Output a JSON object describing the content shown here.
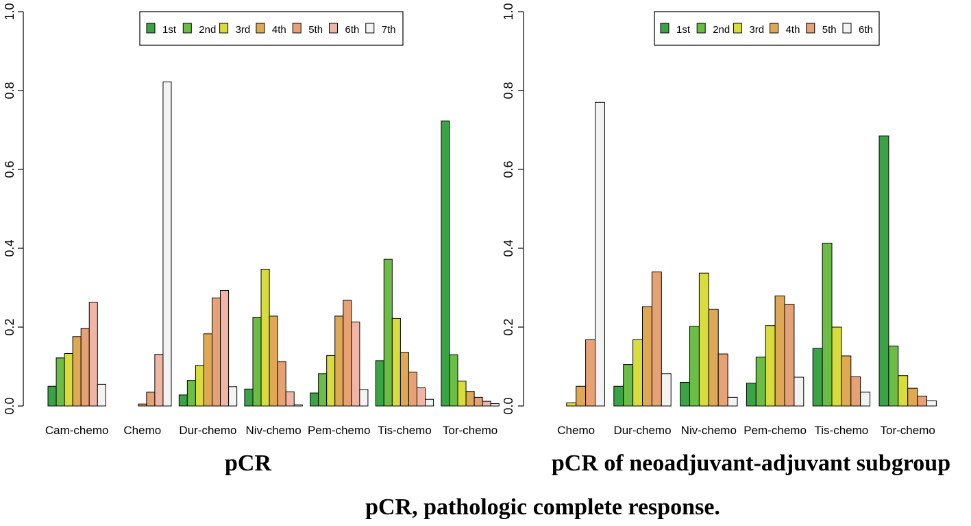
{
  "figure_caption": "pCR, pathologic complete response.",
  "chart_data": [
    {
      "type": "bar",
      "title": "pCR",
      "xlabel": "",
      "ylabel": "",
      "ylim": [
        0,
        1
      ],
      "yticks": [
        "0.0",
        "0.2",
        "0.4",
        "0.6",
        "0.8",
        "1.0"
      ],
      "grid": false,
      "legend_position": "top-center",
      "categories": [
        "Cam-chemo",
        "Chemo",
        "Dur-chemo",
        "Niv-chemo",
        "Pem-chemo",
        "Tis-chemo",
        "Tor-chemo"
      ],
      "series": [
        {
          "name": "1st",
          "color": "#3aa345",
          "values": [
            0.05,
            0.0,
            0.028,
            0.043,
            0.033,
            0.115,
            0.723
          ]
        },
        {
          "name": "2nd",
          "color": "#6cbd45",
          "values": [
            0.122,
            0.0,
            0.065,
            0.225,
            0.082,
            0.372,
            0.13
          ]
        },
        {
          "name": "3rd",
          "color": "#d8dc3c",
          "values": [
            0.133,
            0.0,
            0.103,
            0.347,
            0.128,
            0.222,
            0.063
          ]
        },
        {
          "name": "4th",
          "color": "#dfa855",
          "values": [
            0.176,
            0.005,
            0.183,
            0.228,
            0.228,
            0.136,
            0.037
          ]
        },
        {
          "name": "5th",
          "color": "#e6a174",
          "values": [
            0.197,
            0.035,
            0.274,
            0.112,
            0.268,
            0.086,
            0.022
          ]
        },
        {
          "name": "6th",
          "color": "#efb6a6",
          "values": [
            0.263,
            0.131,
            0.293,
            0.036,
            0.213,
            0.046,
            0.012
          ]
        },
        {
          "name": "7th",
          "color": "#f3f3f3",
          "values": [
            0.055,
            0.822,
            0.049,
            0.003,
            0.042,
            0.017,
            0.006
          ]
        }
      ]
    },
    {
      "type": "bar",
      "title": "pCR of neoadjuvant-adjuvant subgroup",
      "xlabel": "",
      "ylabel": "",
      "ylim": [
        0,
        1
      ],
      "yticks": [
        "0.0",
        "0.2",
        "0.4",
        "0.6",
        "0.8",
        "1.0"
      ],
      "grid": false,
      "legend_position": "top-center",
      "categories": [
        "Chemo",
        "Dur-chemo",
        "Niv-chemo",
        "Pem-chemo",
        "Tis-chemo",
        "Tor-chemo"
      ],
      "series": [
        {
          "name": "1st",
          "color": "#3aa345",
          "values": [
            0.0,
            0.05,
            0.06,
            0.058,
            0.146,
            0.685
          ]
        },
        {
          "name": "2nd",
          "color": "#6cbd45",
          "values": [
            0.0,
            0.105,
            0.202,
            0.124,
            0.413,
            0.152
          ]
        },
        {
          "name": "3rd",
          "color": "#d8dc3c",
          "values": [
            0.008,
            0.168,
            0.337,
            0.204,
            0.2,
            0.077
          ]
        },
        {
          "name": "4th",
          "color": "#dfa855",
          "values": [
            0.05,
            0.252,
            0.245,
            0.279,
            0.127,
            0.045
          ]
        },
        {
          "name": "5th",
          "color": "#e6a174",
          "values": [
            0.168,
            0.34,
            0.132,
            0.258,
            0.074,
            0.025
          ]
        },
        {
          "name": "6th",
          "color": "#f3f3f3",
          "values": [
            0.77,
            0.082,
            0.022,
            0.073,
            0.035,
            0.013
          ]
        }
      ]
    }
  ]
}
